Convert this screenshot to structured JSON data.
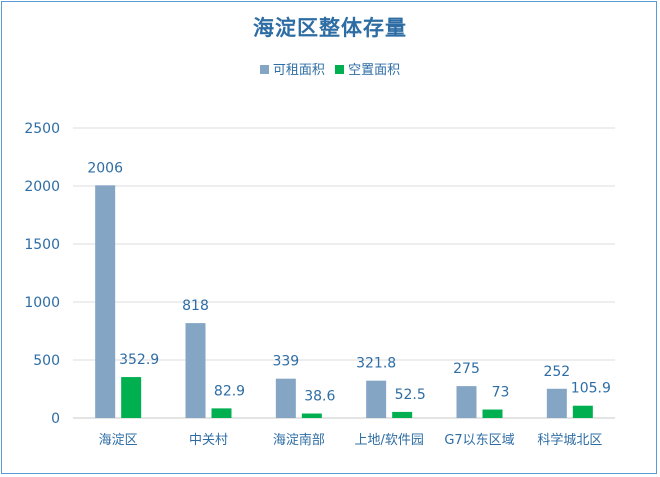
{
  "chart_data": {
    "type": "bar",
    "title": "海淀区整体存量",
    "xlabel": "",
    "ylabel": "",
    "categories": [
      "海淀区",
      "中关村",
      "海淀南部",
      "上地/软件园",
      "G7以东区域",
      "科学城北区"
    ],
    "series": [
      {
        "name": "可租面积",
        "color": "#85a5c5",
        "values": [
          2006,
          818,
          339,
          321.8,
          275,
          252
        ]
      },
      {
        "name": "空置面积",
        "color": "#00b050",
        "values": [
          352.9,
          82.9,
          38.6,
          52.5,
          73,
          105.9
        ]
      }
    ],
    "ylim": [
      0,
      2500
    ],
    "yticks": [
      0,
      500,
      1000,
      1500,
      2000,
      2500
    ],
    "grid": true,
    "legend_position": "top"
  }
}
